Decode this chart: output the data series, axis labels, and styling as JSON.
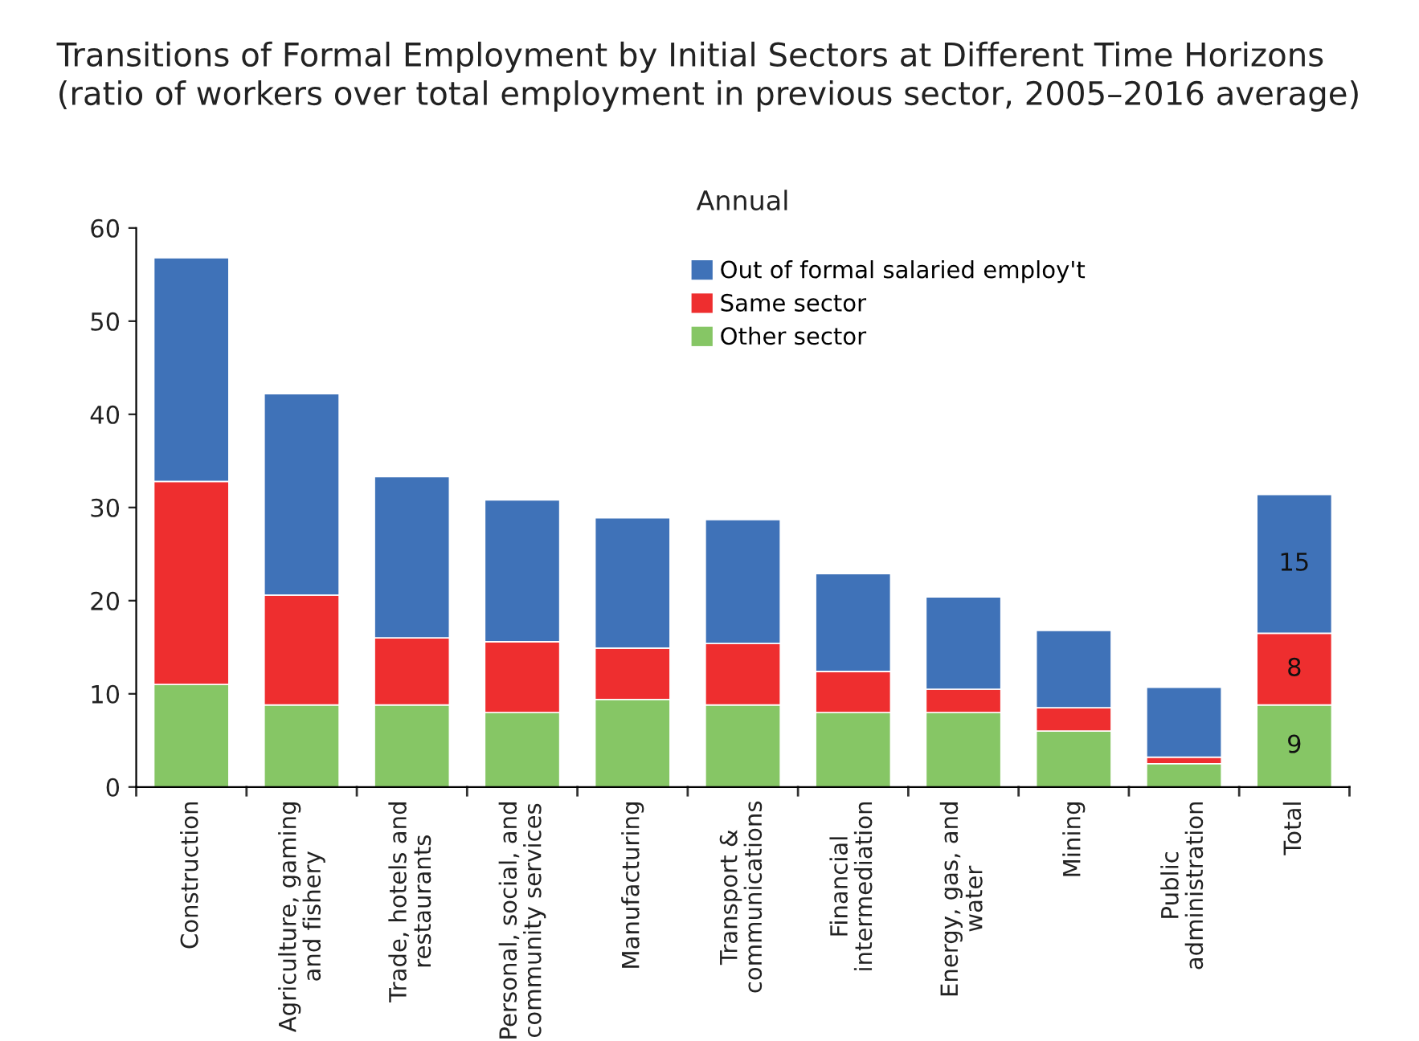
{
  "chart_data": {
    "type": "bar",
    "stacked": true,
    "title": "Transitions of Formal Employment by Initial Sectors at Different Time Horizons\n(ratio of workers over total employment in previous sector, 2005–2016 average)",
    "subtitle": "Annual",
    "categories": [
      "Construction",
      "Agriculture, gaming\nand fishery",
      "Trade, hotels and\nrestaurants",
      "Personal, social, and\ncommunity services",
      "Manufacturing",
      "Transport &\ncommunications",
      "Financial\nintermediation",
      "Energy, gas, and\nwater",
      "Mining",
      "Public\nadministration",
      "Total"
    ],
    "series": [
      {
        "name": "Other sector",
        "color": "#86c665",
        "values": [
          11.0,
          8.8,
          8.8,
          8.0,
          9.4,
          8.8,
          8.0,
          8.0,
          6.0,
          2.5,
          8.8
        ],
        "value_labels": [
          null,
          null,
          null,
          null,
          null,
          null,
          null,
          null,
          null,
          null,
          "9"
        ]
      },
      {
        "name": "Same sector",
        "color": "#ee2e2f",
        "values": [
          21.8,
          11.8,
          7.2,
          7.6,
          5.5,
          6.6,
          4.4,
          2.5,
          2.5,
          0.7,
          7.7
        ],
        "value_labels": [
          null,
          null,
          null,
          null,
          null,
          null,
          null,
          null,
          null,
          null,
          "8"
        ]
      },
      {
        "name": "Out of formal salaried employ't",
        "color": "#3f72b8",
        "values": [
          24.0,
          21.6,
          17.3,
          15.2,
          14.0,
          13.3,
          10.5,
          9.9,
          8.3,
          7.5,
          14.9
        ],
        "value_labels": [
          null,
          null,
          null,
          null,
          null,
          null,
          null,
          null,
          null,
          null,
          "15"
        ]
      }
    ],
    "ylim": [
      0,
      60
    ],
    "yticks": [
      0,
      10,
      20,
      30,
      40,
      50,
      60
    ],
    "legend": "top",
    "grid": false
  }
}
